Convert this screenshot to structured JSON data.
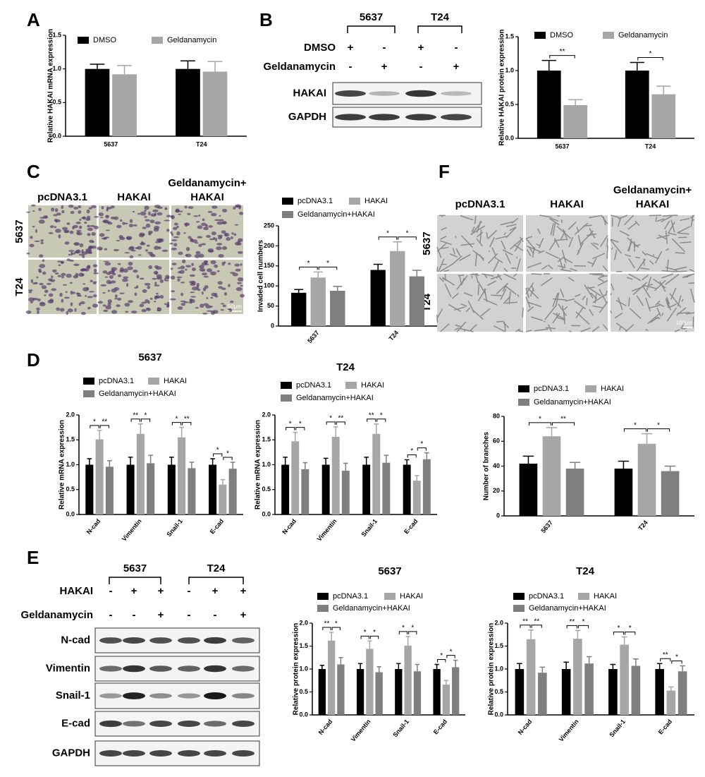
{
  "panel_labels": [
    "A",
    "B",
    "C",
    "D",
    "E",
    "F"
  ],
  "blot_b": {
    "groups": [
      "5637",
      "T24"
    ],
    "rows": [
      {
        "label": "DMSO",
        "marks": [
          "+",
          "-",
          "+",
          "-"
        ]
      },
      {
        "label": "Geldanamycin",
        "marks": [
          "-",
          "+",
          "-",
          "+"
        ]
      }
    ],
    "bands": [
      "HAKAI",
      "GAPDH"
    ]
  },
  "blot_e": {
    "groups": [
      "5637",
      "T24"
    ],
    "rows": [
      {
        "label": "HAKAI",
        "marks": [
          "-",
          "+",
          "+",
          "-",
          "+",
          "+"
        ]
      },
      {
        "label": "Geldanamycin",
        "marks": [
          "-",
          "-",
          "+",
          "-",
          "-",
          "+"
        ]
      }
    ],
    "bands": [
      "N-cad",
      "Vimentin",
      "Snail-1",
      "E-cad",
      "GAPDH"
    ]
  },
  "images_c": {
    "columns": [
      [
        "pcDNA3.1"
      ],
      [
        "HAKAI"
      ],
      [
        "Geldanamycin+",
        "HAKAI"
      ]
    ],
    "rows": [
      "5637",
      "T24"
    ],
    "scale_bar": "50μm"
  },
  "images_f": {
    "columns": [
      [
        "pcDNA3.1"
      ],
      [
        "HAKAI"
      ],
      [
        "Geldanamycin+",
        "HAKAI"
      ]
    ],
    "rows": [
      "5637",
      "T24"
    ],
    "scale_bar": "100μm"
  },
  "chart_data": [
    {
      "type": "bar",
      "ylabel": "Relative HAKAI mRNA expression",
      "categories": [
        "5637",
        "T24"
      ],
      "series": [
        {
          "name": "DMSO",
          "color": "#000000",
          "values": [
            1.0,
            1.0
          ],
          "errors": [
            0.07,
            0.12
          ]
        },
        {
          "name": "Geldanamycin",
          "color": "#a6a6a6",
          "values": [
            0.92,
            0.96
          ],
          "errors": [
            0.13,
            0.15
          ]
        }
      ],
      "significance": [
        [],
        []
      ],
      "ylim": [
        0,
        1.5
      ],
      "yticks": [
        {
          "value": 0,
          "label": "0.0"
        },
        0.5,
        {
          "value": 1,
          "label": "1.0"
        },
        1.5
      ]
    },
    {
      "type": "bar",
      "ylabel": "Relative HAKAI protein expression",
      "categories": [
        "5637",
        "T24"
      ],
      "series": [
        {
          "name": "DMSO",
          "color": "#000000",
          "values": [
            1.0,
            1.0
          ],
          "errors": [
            0.15,
            0.12
          ]
        },
        {
          "name": "Geldanamycin",
          "color": "#a6a6a6",
          "values": [
            0.49,
            0.65
          ],
          "errors": [
            0.08,
            0.12
          ]
        }
      ],
      "significance": [
        [
          "**"
        ],
        [
          "*"
        ]
      ],
      "ylim": [
        0,
        1.5
      ],
      "yticks": [
        {
          "value": 0,
          "label": "0.0"
        },
        0.5,
        {
          "value": 1,
          "label": "1.0"
        },
        1.5
      ]
    },
    {
      "type": "bar",
      "ylabel": "Invaded cell numbers",
      "categories": [
        "5637",
        "T24"
      ],
      "series": [
        {
          "name": "pcDNA3.1",
          "color": "#000000",
          "values": [
            83,
            140
          ],
          "errors": [
            8,
            14
          ]
        },
        {
          "name": "HAKAI",
          "color": "#a6a6a6",
          "values": [
            121,
            187
          ],
          "errors": [
            14,
            23
          ]
        },
        {
          "name": "Geldanamycin+HAKAI",
          "color": "#7f7f7f",
          "values": [
            88,
            124
          ],
          "errors": [
            11,
            15
          ]
        }
      ],
      "significance": [
        [
          "*",
          "*"
        ],
        [
          "*",
          "*"
        ]
      ],
      "ylim": [
        0,
        250
      ],
      "yticks": [
        0,
        50,
        100,
        150,
        200,
        250
      ]
    },
    {
      "type": "bar",
      "title": "5637",
      "ylabel": "Relative mRNA expression",
      "categories": [
        "N-cad",
        "Vimentin",
        "Snail-1",
        "E-cad"
      ],
      "series": [
        {
          "name": "pcDNA3.1",
          "color": "#000000",
          "values": [
            1.0,
            1.0,
            1.0,
            1.0
          ],
          "errors": [
            0.12,
            0.15,
            0.15,
            0.12
          ]
        },
        {
          "name": "HAKAI",
          "color": "#a6a6a6",
          "values": [
            1.51,
            1.62,
            1.55,
            0.6
          ],
          "errors": [
            0.18,
            0.2,
            0.2,
            0.1
          ]
        },
        {
          "name": "Geldanamycin+HAKAI",
          "color": "#7f7f7f",
          "values": [
            0.96,
            1.03,
            0.93,
            0.92
          ],
          "errors": [
            0.12,
            0.16,
            0.12,
            0.13
          ]
        }
      ],
      "significance": [
        [
          "*",
          "**"
        ],
        [
          "**",
          "*"
        ],
        [
          "*",
          "**"
        ],
        [
          "*",
          "*"
        ]
      ],
      "ylim": [
        0,
        2
      ],
      "yticks": [
        {
          "value": 0,
          "label": "0.0"
        },
        0.5,
        {
          "value": 1,
          "label": "1.0"
        },
        1.5,
        {
          "value": 2,
          "label": "2.0"
        }
      ]
    },
    {
      "type": "bar",
      "title": "T24",
      "ylabel": "Relative mRNA expression",
      "categories": [
        "N-cad",
        "Vimentin",
        "Snail-1",
        "E-cad"
      ],
      "series": [
        {
          "name": "pcDNA3.1",
          "color": "#000000",
          "values": [
            1.0,
            1.0,
            1.0,
            1.0
          ],
          "errors": [
            0.15,
            0.13,
            0.15,
            0.1
          ]
        },
        {
          "name": "HAKAI",
          "color": "#a6a6a6",
          "values": [
            1.47,
            1.56,
            1.62,
            0.68
          ],
          "errors": [
            0.18,
            0.2,
            0.2,
            0.1
          ]
        },
        {
          "name": "Geldanamycin+HAKAI",
          "color": "#7f7f7f",
          "values": [
            0.91,
            0.88,
            1.04,
            1.11
          ],
          "errors": [
            0.13,
            0.15,
            0.15,
            0.13
          ]
        }
      ],
      "significance": [
        [
          "*",
          "*"
        ],
        [
          "*",
          "**"
        ],
        [
          "**",
          "*"
        ],
        [
          "*",
          "*"
        ]
      ],
      "ylim": [
        0,
        2
      ],
      "yticks": [
        {
          "value": 0,
          "label": "0.0"
        },
        0.5,
        {
          "value": 1,
          "label": "1.0"
        },
        1.5,
        {
          "value": 2,
          "label": "2.0"
        }
      ]
    },
    {
      "type": "bar",
      "ylabel": "Number of branches",
      "categories": [
        "5637",
        "T24"
      ],
      "series": [
        {
          "name": "pcDNA3.1",
          "color": "#000000",
          "values": [
            42,
            38
          ],
          "errors": [
            6,
            6
          ]
        },
        {
          "name": "HAKAI",
          "color": "#a6a6a6",
          "values": [
            64,
            58
          ],
          "errors": [
            7,
            8
          ]
        },
        {
          "name": "Geldanamycin+HAKAI",
          "color": "#7f7f7f",
          "values": [
            38,
            36
          ],
          "errors": [
            5,
            4
          ]
        }
      ],
      "significance": [
        [
          "*",
          "**"
        ],
        [
          "*",
          "*"
        ]
      ],
      "ylim": [
        0,
        80
      ],
      "yticks": [
        0,
        20,
        40,
        60,
        80
      ]
    },
    {
      "type": "bar",
      "title": "5637",
      "ylabel": "Relative protein expression",
      "categories": [
        "N-cad",
        "Vimentin",
        "Snail-1",
        "E-cad"
      ],
      "series": [
        {
          "name": "pcDNA3.1",
          "color": "#000000",
          "values": [
            1.0,
            1.0,
            1.0,
            1.0
          ],
          "errors": [
            0.08,
            0.12,
            0.12,
            0.1
          ]
        },
        {
          "name": "HAKAI",
          "color": "#a6a6a6",
          "values": [
            1.62,
            1.44,
            1.51,
            0.66
          ],
          "errors": [
            0.18,
            0.17,
            0.2,
            0.09
          ]
        },
        {
          "name": "Geldanamycin+HAKAI",
          "color": "#7f7f7f",
          "values": [
            1.1,
            0.93,
            0.95,
            1.04
          ],
          "errors": [
            0.15,
            0.12,
            0.15,
            0.15
          ]
        }
      ],
      "significance": [
        [
          "**",
          "*"
        ],
        [
          "*",
          "*"
        ],
        [
          "*",
          "*"
        ],
        [
          "*",
          "*"
        ]
      ],
      "ylim": [
        0,
        2
      ],
      "yticks": [
        {
          "value": 0,
          "label": "0.0"
        },
        0.5,
        {
          "value": 1,
          "label": "1.0"
        },
        1.5,
        {
          "value": 2,
          "label": "2.0"
        }
      ]
    },
    {
      "type": "bar",
      "title": "T24",
      "ylabel": "Relative protein expression",
      "categories": [
        "N-cad",
        "Vimentin",
        "Snail-1",
        "E-cad"
      ],
      "series": [
        {
          "name": "pcDNA3.1",
          "color": "#000000",
          "values": [
            1.0,
            1.0,
            1.0,
            1.0
          ],
          "errors": [
            0.12,
            0.15,
            0.1,
            0.12
          ]
        },
        {
          "name": "HAKAI",
          "color": "#a6a6a6",
          "values": [
            1.65,
            1.66,
            1.53,
            0.53
          ],
          "errors": [
            0.2,
            0.18,
            0.17,
            0.08
          ]
        },
        {
          "name": "Geldanamycin+HAKAI",
          "color": "#7f7f7f",
          "values": [
            0.92,
            1.12,
            1.07,
            0.95
          ],
          "errors": [
            0.12,
            0.15,
            0.15,
            0.12
          ]
        }
      ],
      "significance": [
        [
          "**",
          "**"
        ],
        [
          "**",
          "*"
        ],
        [
          "*",
          "*"
        ],
        [
          "**",
          "*"
        ]
      ],
      "ylim": [
        0,
        2
      ],
      "yticks": [
        {
          "value": 0,
          "label": "0.0"
        },
        0.5,
        {
          "value": 1,
          "label": "1.0"
        },
        1.5,
        {
          "value": 2,
          "label": "2.0"
        }
      ]
    }
  ]
}
